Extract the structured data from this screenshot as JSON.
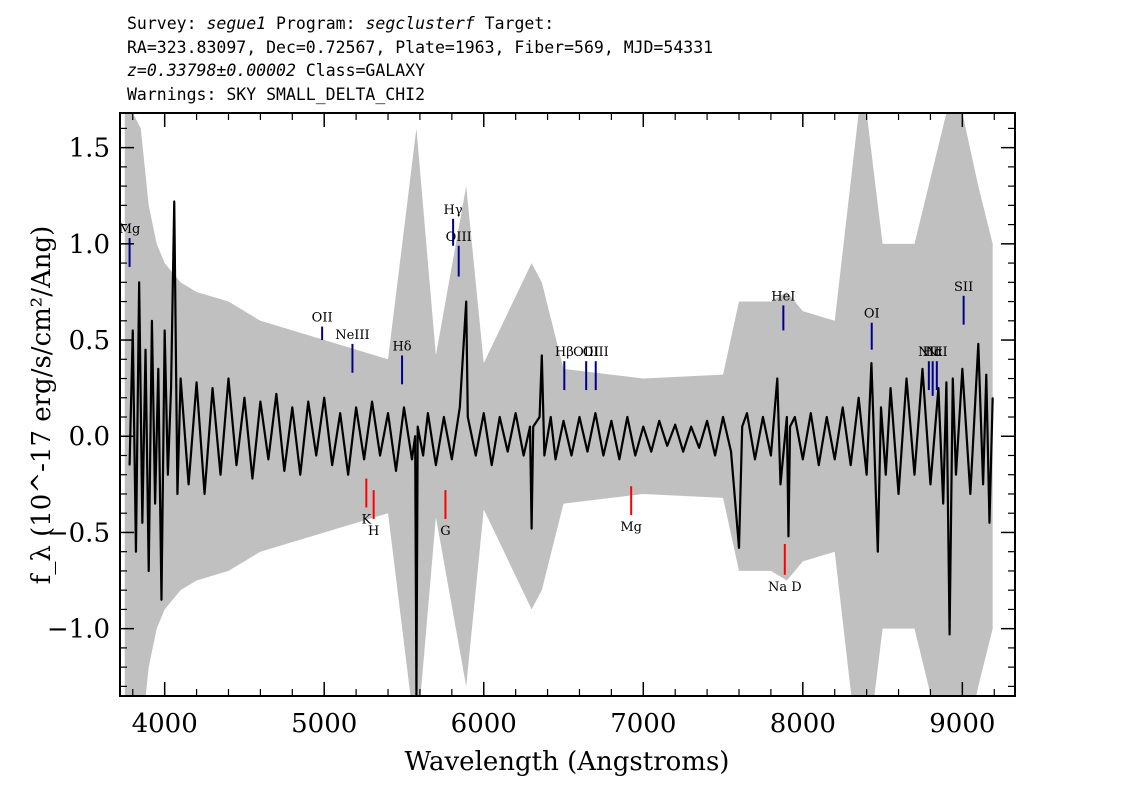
{
  "header": {
    "survey_label": "Survey:",
    "survey": "segue1",
    "program_label": "Program:",
    "program": "segclusterf",
    "target_label": "Target:",
    "line2": "RA=323.83097, Dec=0.72567, Plate=1963, Fiber=569, MJD=54331",
    "redshift": "z=0.33798±0.00002",
    "class": "Class=GALAXY",
    "warnings": "Warnings: SKY SMALL_DELTA_CHI2"
  },
  "chart_data": {
    "type": "line",
    "xlabel": "Wavelength (Angstroms)",
    "ylabel": "f_λ (10^-17 erg/s/cm²/Ang)",
    "xlim": [
      3720,
      9330
    ],
    "ylim": [
      -1.35,
      1.68
    ],
    "x_ticks": [
      4000,
      5000,
      6000,
      7000,
      8000,
      9000
    ],
    "y_ticks": [
      -1.0,
      -0.5,
      0.0,
      0.5,
      1.0,
      1.5
    ],
    "x_tick_labels": [
      "4000",
      "5000",
      "6000",
      "7000",
      "8000",
      "9000"
    ],
    "y_tick_labels": [
      "−1.0",
      "−0.5",
      "0.0",
      "0.5",
      "1.0",
      "1.5"
    ],
    "series": [
      {
        "role": "flux",
        "color": "#000000",
        "points": [
          [
            3780,
            -0.15
          ],
          [
            3800,
            0.55
          ],
          [
            3820,
            -0.6
          ],
          [
            3840,
            0.8
          ],
          [
            3860,
            -0.45
          ],
          [
            3880,
            0.45
          ],
          [
            3900,
            -0.7
          ],
          [
            3920,
            0.6
          ],
          [
            3940,
            -0.35
          ],
          [
            3960,
            0.35
          ],
          [
            3980,
            -0.85
          ],
          [
            4000,
            0.55
          ],
          [
            4020,
            -0.2
          ],
          [
            4040,
            0.25
          ],
          [
            4060,
            1.22
          ],
          [
            4080,
            -0.3
          ],
          [
            4100,
            0.3
          ],
          [
            4150,
            -0.25
          ],
          [
            4200,
            0.28
          ],
          [
            4250,
            -0.3
          ],
          [
            4300,
            0.25
          ],
          [
            4350,
            -0.2
          ],
          [
            4400,
            0.3
          ],
          [
            4450,
            -0.15
          ],
          [
            4500,
            0.2
          ],
          [
            4550,
            -0.22
          ],
          [
            4600,
            0.18
          ],
          [
            4650,
            -0.12
          ],
          [
            4700,
            0.22
          ],
          [
            4750,
            -0.18
          ],
          [
            4800,
            0.15
          ],
          [
            4850,
            -0.2
          ],
          [
            4900,
            0.18
          ],
          [
            4950,
            -0.1
          ],
          [
            5000,
            0.2
          ],
          [
            5050,
            -0.15
          ],
          [
            5100,
            0.12
          ],
          [
            5150,
            -0.2
          ],
          [
            5200,
            0.15
          ],
          [
            5250,
            -0.12
          ],
          [
            5300,
            0.18
          ],
          [
            5350,
            -0.1
          ],
          [
            5400,
            0.12
          ],
          [
            5450,
            -0.18
          ],
          [
            5500,
            0.15
          ],
          [
            5550,
            -0.12
          ],
          [
            5570,
            0.0
          ],
          [
            5578,
            -1.35
          ],
          [
            5586,
            0.05
          ],
          [
            5620,
            -0.1
          ],
          [
            5650,
            0.12
          ],
          [
            5700,
            -0.15
          ],
          [
            5750,
            0.1
          ],
          [
            5800,
            -0.12
          ],
          [
            5850,
            0.15
          ],
          [
            5890,
            0.7
          ],
          [
            5900,
            0.1
          ],
          [
            5950,
            -0.1
          ],
          [
            6000,
            0.12
          ],
          [
            6050,
            -0.15
          ],
          [
            6100,
            0.1
          ],
          [
            6150,
            -0.08
          ],
          [
            6200,
            0.12
          ],
          [
            6250,
            -0.1
          ],
          [
            6290,
            0.05
          ],
          [
            6300,
            -0.48
          ],
          [
            6310,
            0.05
          ],
          [
            6350,
            0.1
          ],
          [
            6364,
            0.42
          ],
          [
            6380,
            -0.1
          ],
          [
            6420,
            0.1
          ],
          [
            6450,
            -0.12
          ],
          [
            6500,
            0.08
          ],
          [
            6550,
            -0.1
          ],
          [
            6600,
            0.1
          ],
          [
            6650,
            -0.08
          ],
          [
            6700,
            0.12
          ],
          [
            6750,
            -0.1
          ],
          [
            6800,
            0.08
          ],
          [
            6850,
            -0.12
          ],
          [
            6900,
            0.1
          ],
          [
            6950,
            -0.1
          ],
          [
            7000,
            0.05
          ],
          [
            7050,
            -0.08
          ],
          [
            7100,
            0.08
          ],
          [
            7150,
            -0.05
          ],
          [
            7200,
            0.06
          ],
          [
            7250,
            -0.08
          ],
          [
            7300,
            0.05
          ],
          [
            7350,
            -0.06
          ],
          [
            7400,
            0.08
          ],
          [
            7450,
            -0.1
          ],
          [
            7500,
            0.1
          ],
          [
            7550,
            -0.08
          ],
          [
            7600,
            -0.58
          ],
          [
            7620,
            0.05
          ],
          [
            7650,
            0.12
          ],
          [
            7700,
            -0.12
          ],
          [
            7750,
            0.1
          ],
          [
            7800,
            -0.1
          ],
          [
            7840,
            0.3
          ],
          [
            7860,
            -0.25
          ],
          [
            7900,
            0.1
          ],
          [
            7910,
            -0.52
          ],
          [
            7920,
            0.05
          ],
          [
            7950,
            0.1
          ],
          [
            8000,
            -0.12
          ],
          [
            8050,
            0.12
          ],
          [
            8100,
            -0.15
          ],
          [
            8150,
            0.1
          ],
          [
            8200,
            -0.12
          ],
          [
            8250,
            0.15
          ],
          [
            8300,
            -0.15
          ],
          [
            8350,
            0.2
          ],
          [
            8400,
            -0.2
          ],
          [
            8430,
            0.38
          ],
          [
            8450,
            -0.1
          ],
          [
            8470,
            -0.6
          ],
          [
            8490,
            0.15
          ],
          [
            8520,
            -0.2
          ],
          [
            8550,
            0.25
          ],
          [
            8600,
            -0.3
          ],
          [
            8650,
            0.3
          ],
          [
            8700,
            -0.2
          ],
          [
            8750,
            0.35
          ],
          [
            8800,
            -0.25
          ],
          [
            8850,
            0.25
          ],
          [
            8880,
            -0.35
          ],
          [
            8900,
            0.28
          ],
          [
            8920,
            -1.03
          ],
          [
            8940,
            0.3
          ],
          [
            8960,
            -0.2
          ],
          [
            9000,
            0.35
          ],
          [
            9050,
            -0.3
          ],
          [
            9100,
            0.48
          ],
          [
            9130,
            -0.25
          ],
          [
            9150,
            0.32
          ],
          [
            9170,
            -0.45
          ],
          [
            9190,
            0.2
          ]
        ]
      },
      {
        "role": "error",
        "color": "#c0c0c0",
        "points": [
          [
            3750,
            1.68
          ],
          [
            3800,
            1.68
          ],
          [
            3850,
            1.6
          ],
          [
            3900,
            1.2
          ],
          [
            3950,
            1.0
          ],
          [
            4000,
            0.9
          ],
          [
            4100,
            0.8
          ],
          [
            4200,
            0.75
          ],
          [
            4400,
            0.7
          ],
          [
            4600,
            0.6
          ],
          [
            4800,
            0.55
          ],
          [
            5000,
            0.5
          ],
          [
            5200,
            0.45
          ],
          [
            5400,
            0.4
          ],
          [
            5578,
            1.6
          ],
          [
            5700,
            0.42
          ],
          [
            5890,
            1.3
          ],
          [
            6000,
            0.38
          ],
          [
            6300,
            0.9
          ],
          [
            6364,
            0.8
          ],
          [
            6500,
            0.35
          ],
          [
            7000,
            0.3
          ],
          [
            7500,
            0.32
          ],
          [
            7600,
            0.7
          ],
          [
            7800,
            0.7
          ],
          [
            7900,
            0.75
          ],
          [
            8000,
            0.65
          ],
          [
            8200,
            0.6
          ],
          [
            8350,
            1.68
          ],
          [
            8400,
            1.68
          ],
          [
            8500,
            1.0
          ],
          [
            8700,
            1.0
          ],
          [
            8900,
            1.68
          ],
          [
            9000,
            1.68
          ],
          [
            9100,
            1.3
          ],
          [
            9190,
            1.0
          ]
        ]
      }
    ],
    "emission_lines": [
      {
        "label": "Mg",
        "wave": 3780,
        "color": "#00008b",
        "y0": 0.88,
        "y1": 1.03
      },
      {
        "label": "OII",
        "wave": 4987,
        "color": "#00008b",
        "y0": 0.5,
        "y1": 0.57
      },
      {
        "label": "NeIII",
        "wave": 5177,
        "color": "#00008b",
        "y0": 0.33,
        "y1": 0.48
      },
      {
        "label": "Hδ",
        "wave": 5488,
        "color": "#00008b",
        "y0": 0.27,
        "y1": 0.42
      },
      {
        "label": "Hγ",
        "wave": 5808,
        "color": "#00008b",
        "y0": 0.99,
        "y1": 1.13
      },
      {
        "label": "OIII",
        "wave": 5843,
        "color": "#00008b",
        "y0": 0.83,
        "y1": 0.99
      },
      {
        "label": "Hβ",
        "wave": 6505,
        "color": "#00008b",
        "y0": 0.24,
        "y1": 0.39
      },
      {
        "label": "OIII",
        "wave": 6642,
        "color": "#00008b",
        "y0": 0.24,
        "y1": 0.39
      },
      {
        "label": "OIII",
        "wave": 6702,
        "color": "#00008b",
        "y0": 0.24,
        "y1": 0.39
      },
      {
        "label": "HeI",
        "wave": 7878,
        "color": "#00008b",
        "y0": 0.55,
        "y1": 0.68
      },
      {
        "label": "OI",
        "wave": 8432,
        "color": "#00008b",
        "y0": 0.45,
        "y1": 0.59
      },
      {
        "label": "NII",
        "wave": 8790,
        "color": "#00008b",
        "y0": 0.24,
        "y1": 0.39
      },
      {
        "label": "Hα",
        "wave": 8814,
        "color": "#00008b",
        "y0": 0.21,
        "y1": 0.39
      },
      {
        "label": "NII",
        "wave": 8840,
        "color": "#00008b",
        "y0": 0.24,
        "y1": 0.39
      },
      {
        "label": "SII",
        "wave": 9008,
        "color": "#00008b",
        "y0": 0.58,
        "y1": 0.73
      }
    ],
    "absorption_lines": [
      {
        "label": "K",
        "wave": 5264,
        "color": "#ff0000",
        "y0": -0.37,
        "y1": -0.22
      },
      {
        "label": "H",
        "wave": 5310,
        "color": "#ff0000",
        "y0": -0.43,
        "y1": -0.28
      },
      {
        "label": "G",
        "wave": 5760,
        "color": "#ff0000",
        "y0": -0.43,
        "y1": -0.28
      },
      {
        "label": "Mg",
        "wave": 6924,
        "color": "#ff0000",
        "y0": -0.41,
        "y1": -0.26
      },
      {
        "label": "Na D",
        "wave": 7887,
        "color": "#ff0000",
        "y0": -0.72,
        "y1": -0.56
      }
    ]
  }
}
